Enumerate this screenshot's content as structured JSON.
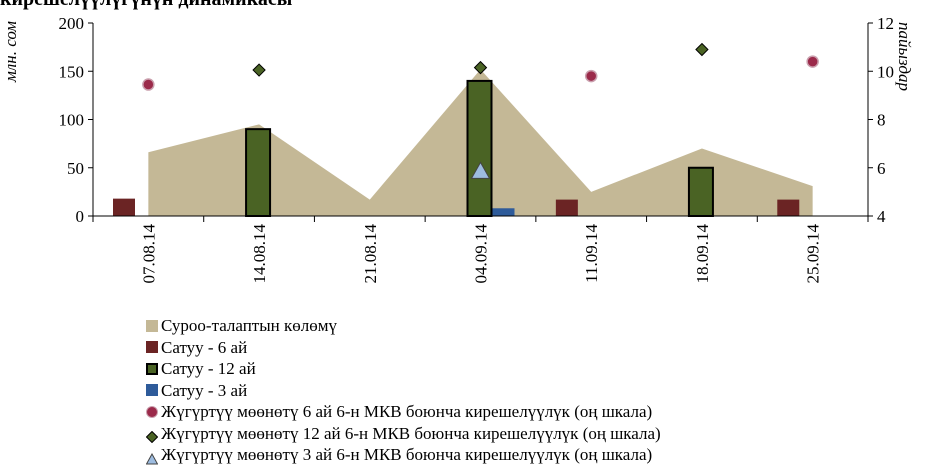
{
  "title_fragment": "кирешелүүлүгүнүн динамикасы",
  "chart_data": {
    "type": "bar",
    "categories": [
      "07.08.14",
      "14.08.14",
      "21.08.14",
      "04.09.14",
      "11.09.14",
      "18.09.14",
      "25.09.14"
    ],
    "ylabel": "млн. сом",
    "y2label": "пайыздар",
    "ylim": [
      0,
      200
    ],
    "y2lim": [
      4,
      12
    ],
    "yticks": [
      "0",
      "50",
      "100",
      "150",
      "200"
    ],
    "y2ticks": [
      "4",
      "6",
      "8",
      "10",
      "12"
    ],
    "legend_position": "bottom",
    "series": [
      {
        "name": "Суроо-талаптын көлөмү",
        "kind": "area",
        "axis": "left",
        "color": "#c4b896",
        "values": [
          66,
          95,
          17,
          152,
          25,
          70,
          31
        ]
      },
      {
        "name": "Сатуу - 6 ай",
        "kind": "bar",
        "axis": "left",
        "color": "#6b2424",
        "values": [
          18,
          null,
          null,
          null,
          17,
          null,
          17
        ]
      },
      {
        "name": "Сатуу - 12 ай",
        "kind": "bar",
        "axis": "left",
        "color": "#4a6324",
        "values": [
          null,
          90,
          null,
          140,
          null,
          50,
          null
        ]
      },
      {
        "name": "Сатуу - 3 ай",
        "kind": "bar",
        "axis": "left",
        "color": "#2e5b9a",
        "values": [
          null,
          null,
          null,
          8,
          null,
          null,
          null
        ]
      },
      {
        "name": "Жүгүртүү мөөнөтү 6 ай 6-н МКВ боюнча кирешелүүлүк (оң шкала)",
        "kind": "marker-circle",
        "axis": "right",
        "color": "#9b2a4a",
        "values": [
          9.45,
          null,
          null,
          null,
          9.8,
          null,
          10.4
        ]
      },
      {
        "name": "Жүгүртүү мөөнөтү 12 ай 6-н МКВ боюнча кирешелүүлүк (оң шкала)",
        "kind": "marker-diamond",
        "axis": "right",
        "color": "#4a6324",
        "values": [
          null,
          10.05,
          null,
          10.15,
          null,
          10.9,
          null
        ]
      },
      {
        "name": "Жүгүртүү мөөнөтү 3 ай 6-н МКВ боюнча кирешелүүлүк (оң шкала)",
        "kind": "marker-triangle",
        "axis": "right",
        "color": "#9dbce0",
        "values": [
          null,
          null,
          null,
          5.85,
          null,
          null,
          null
        ]
      }
    ]
  }
}
